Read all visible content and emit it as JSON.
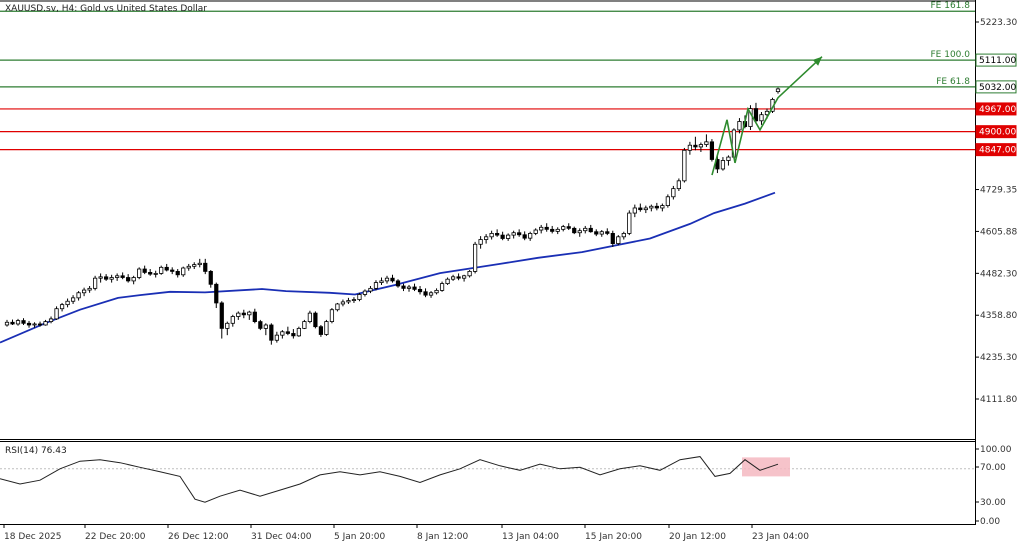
{
  "colors": {
    "bull": "#ffffff",
    "bear": "#000000",
    "wick": "#000000",
    "ma": "#1a2fb5",
    "resistance": "#e00000",
    "fib": "#2e7d32",
    "rsi_line": "#222222",
    "rsi_box": "#f4b8c1",
    "arrow": "#2e8b2e",
    "grid": "#bfbfbf"
  },
  "chart_data": [
    {
      "type": "candlestick",
      "title": "XAUUSD.sv, H4:  Gold vs United States Dollar",
      "ylim": [
        4050,
        5290
      ],
      "yticks": [
        "5223.30",
        "4729.35",
        "4605.88",
        "4482.30",
        "4358.80",
        "4235.30",
        "4111.80"
      ],
      "xticks": [
        "18 Dec 2025",
        "22 Dec 20:00",
        "26 Dec 12:00",
        "31 Dec 04:00",
        "5 Jan 20:00",
        "8 Jan 12:00",
        "13 Jan 04:00",
        "15 Jan 20:00",
        "20 Jan 12:00",
        "23 Jan 04:00"
      ],
      "candles": [
        [
          4330,
          4345,
          4325,
          4338
        ],
        [
          4338,
          4346,
          4330,
          4333
        ],
        [
          4333,
          4348,
          4328,
          4343
        ],
        [
          4343,
          4350,
          4330,
          4335
        ],
        [
          4335,
          4342,
          4322,
          4330
        ],
        [
          4330,
          4338,
          4322,
          4333
        ],
        [
          4333,
          4340,
          4325,
          4330
        ],
        [
          4330,
          4345,
          4328,
          4340
        ],
        [
          4340,
          4355,
          4335,
          4348
        ],
        [
          4348,
          4385,
          4345,
          4378
        ],
        [
          4378,
          4395,
          4370,
          4390
        ],
        [
          4390,
          4408,
          4382,
          4400
        ],
        [
          4400,
          4418,
          4392,
          4410
        ],
        [
          4410,
          4430,
          4402,
          4425
        ],
        [
          4425,
          4440,
          4415,
          4433
        ],
        [
          4433,
          4445,
          4425,
          4438
        ],
        [
          4438,
          4475,
          4432,
          4468
        ],
        [
          4468,
          4482,
          4455,
          4472
        ],
        [
          4472,
          4480,
          4460,
          4465
        ],
        [
          4465,
          4478,
          4455,
          4470
        ],
        [
          4470,
          4482,
          4460,
          4475
        ],
        [
          4475,
          4485,
          4465,
          4470
        ],
        [
          4470,
          4480,
          4455,
          4460
        ],
        [
          4460,
          4475,
          4450,
          4470
        ],
        [
          4470,
          4500,
          4465,
          4495
        ],
        [
          4495,
          4505,
          4480,
          4485
        ],
        [
          4485,
          4495,
          4475,
          4480
        ],
        [
          4480,
          4490,
          4470,
          4482
        ],
        [
          4482,
          4505,
          4478,
          4500
        ],
        [
          4500,
          4510,
          4488,
          4492
        ],
        [
          4492,
          4500,
          4480,
          4488
        ],
        [
          4488,
          4495,
          4470,
          4478
        ],
        [
          4478,
          4502,
          4472,
          4498
        ],
        [
          4498,
          4510,
          4490,
          4503
        ],
        [
          4503,
          4515,
          4495,
          4508
        ],
        [
          4508,
          4525,
          4500,
          4512
        ],
        [
          4512,
          4525,
          4480,
          4488
        ],
        [
          4488,
          4492,
          4440,
          4450
        ],
        [
          4450,
          4455,
          4380,
          4395
        ],
        [
          4395,
          4400,
          4290,
          4320
        ],
        [
          4320,
          4340,
          4300,
          4335
        ],
        [
          4335,
          4360,
          4325,
          4355
        ],
        [
          4355,
          4370,
          4345,
          4365
        ],
        [
          4365,
          4375,
          4350,
          4360
        ],
        [
          4360,
          4372,
          4345,
          4368
        ],
        [
          4368,
          4378,
          4335,
          4340
        ],
        [
          4340,
          4345,
          4315,
          4320
        ],
        [
          4320,
          4335,
          4300,
          4330
        ],
        [
          4330,
          4335,
          4272,
          4285
        ],
        [
          4285,
          4310,
          4278,
          4300
        ],
        [
          4300,
          4315,
          4290,
          4310
        ],
        [
          4310,
          4325,
          4300,
          4305
        ],
        [
          4305,
          4318,
          4290,
          4298
        ],
        [
          4298,
          4325,
          4295,
          4320
        ],
        [
          4320,
          4345,
          4318,
          4340
        ],
        [
          4340,
          4372,
          4335,
          4365
        ],
        [
          4365,
          4370,
          4320,
          4325
        ],
        [
          4325,
          4330,
          4295,
          4302
        ],
        [
          4302,
          4345,
          4298,
          4340
        ],
        [
          4340,
          4380,
          4335,
          4375
        ],
        [
          4375,
          4395,
          4370,
          4392
        ],
        [
          4392,
          4405,
          4385,
          4398
        ],
        [
          4398,
          4410,
          4392,
          4402
        ],
        [
          4402,
          4412,
          4395,
          4405
        ],
        [
          4405,
          4425,
          4400,
          4420
        ],
        [
          4420,
          4435,
          4414,
          4430
        ],
        [
          4430,
          4445,
          4424,
          4438
        ],
        [
          4438,
          4462,
          4432,
          4455
        ],
        [
          4455,
          4470,
          4448,
          4460
        ],
        [
          4460,
          4475,
          4452,
          4468
        ],
        [
          4468,
          4478,
          4455,
          4460
        ],
        [
          4460,
          4465,
          4440,
          4445
        ],
        [
          4445,
          4452,
          4430,
          4438
        ],
        [
          4438,
          4448,
          4428,
          4442
        ],
        [
          4442,
          4452,
          4430,
          4435
        ],
        [
          4435,
          4445,
          4420,
          4428
        ],
        [
          4428,
          4438,
          4412,
          4418
        ],
        [
          4418,
          4430,
          4410,
          4425
        ],
        [
          4425,
          4438,
          4420,
          4432
        ],
        [
          4432,
          4458,
          4428,
          4452
        ],
        [
          4452,
          4470,
          4448,
          4465
        ],
        [
          4465,
          4478,
          4460,
          4472
        ],
        [
          4472,
          4482,
          4462,
          4468
        ],
        [
          4468,
          4478,
          4458,
          4475
        ],
        [
          4475,
          4492,
          4470,
          4488
        ],
        [
          4488,
          4575,
          4482,
          4568
        ],
        [
          4568,
          4592,
          4555,
          4582
        ],
        [
          4582,
          4598,
          4570,
          4590
        ],
        [
          4590,
          4608,
          4582,
          4600
        ],
        [
          4600,
          4612,
          4590,
          4595
        ],
        [
          4595,
          4605,
          4580,
          4585
        ],
        [
          4585,
          4600,
          4578,
          4595
        ],
        [
          4595,
          4608,
          4585,
          4602
        ],
        [
          4602,
          4612,
          4590,
          4596
        ],
        [
          4596,
          4606,
          4580,
          4586
        ],
        [
          4586,
          4605,
          4578,
          4600
        ],
        [
          4600,
          4615,
          4595,
          4610
        ],
        [
          4610,
          4625,
          4600,
          4618
        ],
        [
          4618,
          4630,
          4605,
          4612
        ],
        [
          4612,
          4622,
          4600,
          4606
        ],
        [
          4606,
          4618,
          4598,
          4612
        ],
        [
          4612,
          4625,
          4606,
          4620
        ],
        [
          4620,
          4630,
          4610,
          4615
        ],
        [
          4615,
          4620,
          4598,
          4602
        ],
        [
          4602,
          4615,
          4590,
          4608
        ],
        [
          4608,
          4622,
          4600,
          4615
        ],
        [
          4615,
          4625,
          4602,
          4605
        ],
        [
          4605,
          4612,
          4592,
          4598
        ],
        [
          4598,
          4610,
          4590,
          4605
        ],
        [
          4605,
          4615,
          4595,
          4600
        ],
        [
          4600,
          4608,
          4560,
          4570
        ],
        [
          4570,
          4595,
          4565,
          4590
        ],
        [
          4590,
          4605,
          4582,
          4600
        ],
        [
          4600,
          4668,
          4595,
          4660
        ],
        [
          4660,
          4685,
          4648,
          4675
        ],
        [
          4675,
          4688,
          4664,
          4670
        ],
        [
          4670,
          4682,
          4660,
          4675
        ],
        [
          4675,
          4685,
          4665,
          4680
        ],
        [
          4680,
          4690,
          4668,
          4675
        ],
        [
          4675,
          4688,
          4665,
          4682
        ],
        [
          4682,
          4715,
          4676,
          4708
        ],
        [
          4708,
          4740,
          4700,
          4732
        ],
        [
          4732,
          4762,
          4725,
          4755
        ],
        [
          4755,
          4852,
          4750,
          4845
        ],
        [
          4845,
          4870,
          4832,
          4860
        ],
        [
          4860,
          4885,
          4845,
          4855
        ],
        [
          4855,
          4868,
          4840,
          4862
        ],
        [
          4862,
          4892,
          4855,
          4870
        ],
        [
          4870,
          4878,
          4812,
          4818
        ],
        [
          4818,
          4830,
          4778,
          4790
        ],
        [
          4790,
          4825,
          4785,
          4815
        ],
        [
          4815,
          4830,
          4800,
          4825
        ],
        [
          4825,
          4910,
          4820,
          4905
        ],
        [
          4905,
          4940,
          4895,
          4930
        ],
        [
          4930,
          4948,
          4910,
          4915
        ],
        [
          4915,
          4978,
          4905,
          4968
        ],
        [
          4968,
          4985,
          4925,
          4932
        ],
        [
          4932,
          4958,
          4920,
          4950
        ],
        [
          4950,
          4968,
          4938,
          4960
        ],
        [
          4960,
          5000,
          4955,
          4995
        ],
        [
          5018,
          5030,
          5012,
          5026
        ]
      ],
      "ma": [
        [
          0,
          4278
        ],
        [
          45,
          4335
        ],
        [
          80,
          4375
        ],
        [
          118,
          4410
        ],
        [
          140,
          4418
        ],
        [
          170,
          4428
        ],
        [
          205,
          4426
        ],
        [
          262,
          4436
        ],
        [
          286,
          4430
        ],
        [
          330,
          4425
        ],
        [
          355,
          4420
        ],
        [
          395,
          4448
        ],
        [
          440,
          4483
        ],
        [
          500,
          4510
        ],
        [
          538,
          4528
        ],
        [
          582,
          4545
        ],
        [
          650,
          4585
        ],
        [
          690,
          4628
        ],
        [
          714,
          4660
        ],
        [
          745,
          4688
        ],
        [
          775,
          4720
        ]
      ],
      "levels": [
        {
          "label": "FE 161.8",
          "value": 5255,
          "kind": "fib",
          "badge": ""
        },
        {
          "label": "FE 100.0",
          "value": 5111,
          "kind": "fib",
          "badge": "5111.00"
        },
        {
          "label": "FE 61.8",
          "value": 5032,
          "kind": "fib",
          "badge": "5032.00"
        },
        {
          "label": "",
          "value": 4967,
          "kind": "res",
          "badge": "4967.00"
        },
        {
          "label": "",
          "value": 4900,
          "kind": "res",
          "badge": "4900.00"
        },
        {
          "label": "",
          "value": 4847,
          "kind": "res",
          "badge": "4847.00"
        }
      ],
      "wave": [
        [
          4772,
          4935
        ],
        [
          4808,
          4967
        ],
        [
          4930,
          4970
        ],
        [
          5000,
          5121
        ]
      ],
      "wave_x": [
        712,
        727,
        735,
        748,
        760,
        778,
        822
      ]
    },
    {
      "type": "line",
      "title": "RSI(14) 76.43",
      "ylim": [
        0,
        100
      ],
      "yticks": [
        "100.00",
        "70.00",
        "30.00",
        "0.00"
      ],
      "reference": 70,
      "values": [
        [
          0,
          57
        ],
        [
          20,
          50
        ],
        [
          40,
          55
        ],
        [
          60,
          70
        ],
        [
          80,
          80
        ],
        [
          100,
          82
        ],
        [
          120,
          78
        ],
        [
          140,
          72
        ],
        [
          160,
          66
        ],
        [
          180,
          60
        ],
        [
          195,
          30
        ],
        [
          205,
          26
        ],
        [
          220,
          34
        ],
        [
          240,
          42
        ],
        [
          260,
          34
        ],
        [
          280,
          42
        ],
        [
          300,
          50
        ],
        [
          320,
          62
        ],
        [
          340,
          66
        ],
        [
          360,
          62
        ],
        [
          380,
          66
        ],
        [
          400,
          60
        ],
        [
          420,
          52
        ],
        [
          440,
          62
        ],
        [
          460,
          70
        ],
        [
          480,
          82
        ],
        [
          500,
          74
        ],
        [
          520,
          68
        ],
        [
          540,
          76
        ],
        [
          560,
          70
        ],
        [
          580,
          72
        ],
        [
          600,
          62
        ],
        [
          620,
          70
        ],
        [
          640,
          74
        ],
        [
          660,
          68
        ],
        [
          680,
          82
        ],
        [
          700,
          86
        ],
        [
          715,
          60
        ],
        [
          730,
          64
        ],
        [
          745,
          82
        ],
        [
          760,
          68
        ],
        [
          778,
          76
        ]
      ],
      "highlight": [
        742,
        790,
        85,
        60
      ]
    }
  ]
}
